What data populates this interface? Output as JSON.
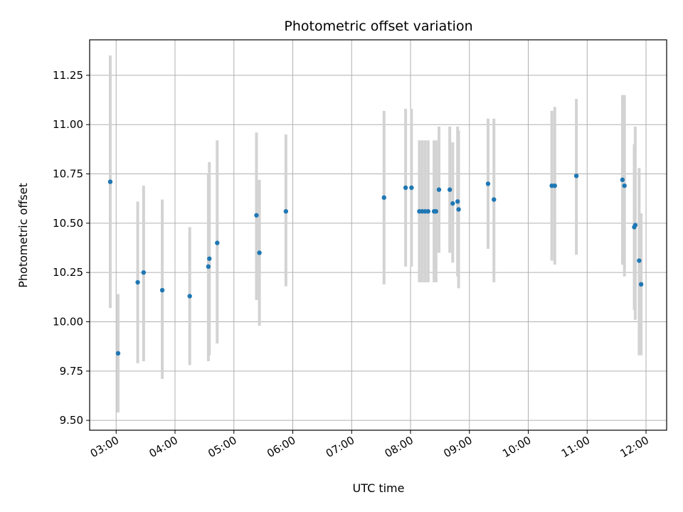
{
  "chart_data": {
    "type": "scatter",
    "title": "Photometric offset variation",
    "xlabel": "UTC time",
    "ylabel": "Photometric offset",
    "xlim": [
      "02:33",
      "12:21"
    ],
    "ylim": [
      9.45,
      11.43
    ],
    "grid": true,
    "x_ticks": [
      "03:00",
      "04:00",
      "05:00",
      "06:00",
      "07:00",
      "08:00",
      "09:00",
      "10:00",
      "11:00",
      "12:00"
    ],
    "y_ticks": [
      "9.50",
      "9.75",
      "10.00",
      "10.25",
      "10.50",
      "10.75",
      "11.00",
      "11.25"
    ],
    "series": [
      {
        "marker_color": "#1f77b4",
        "errorbar_color": "#d3d3d3",
        "points": [
          {
            "x": "02:54",
            "y": 10.71,
            "ylow": 10.07,
            "yhigh": 11.35
          },
          {
            "x": "03:02",
            "y": 9.84,
            "ylow": 9.54,
            "yhigh": 10.14
          },
          {
            "x": "03:22",
            "y": 10.2,
            "ylow": 9.79,
            "yhigh": 10.61
          },
          {
            "x": "03:28",
            "y": 10.25,
            "ylow": 9.8,
            "yhigh": 10.69
          },
          {
            "x": "03:47",
            "y": 10.16,
            "ylow": 9.71,
            "yhigh": 10.62
          },
          {
            "x": "04:15",
            "y": 10.13,
            "ylow": 9.78,
            "yhigh": 10.48
          },
          {
            "x": "04:34",
            "y": 10.28,
            "ylow": 9.8,
            "yhigh": 10.75
          },
          {
            "x": "04:35",
            "y": 10.32,
            "ylow": 9.83,
            "yhigh": 10.81
          },
          {
            "x": "04:43",
            "y": 10.4,
            "ylow": 9.89,
            "yhigh": 10.92
          },
          {
            "x": "05:23",
            "y": 10.54,
            "ylow": 10.11,
            "yhigh": 10.96
          },
          {
            "x": "05:26",
            "y": 10.35,
            "ylow": 9.98,
            "yhigh": 10.72
          },
          {
            "x": "05:53",
            "y": 10.56,
            "ylow": 10.18,
            "yhigh": 10.95
          },
          {
            "x": "07:33",
            "y": 10.63,
            "ylow": 10.19,
            "yhigh": 11.07
          },
          {
            "x": "07:55",
            "y": 10.68,
            "ylow": 10.28,
            "yhigh": 11.08
          },
          {
            "x": "08:01",
            "y": 10.68,
            "ylow": 10.28,
            "yhigh": 11.08
          },
          {
            "x": "08:09",
            "y": 10.56,
            "ylow": 10.2,
            "yhigh": 10.92
          },
          {
            "x": "08:12",
            "y": 10.56,
            "ylow": 10.2,
            "yhigh": 10.92
          },
          {
            "x": "08:15",
            "y": 10.56,
            "ylow": 10.2,
            "yhigh": 10.92
          },
          {
            "x": "08:18",
            "y": 10.56,
            "ylow": 10.2,
            "yhigh": 10.92
          },
          {
            "x": "08:24",
            "y": 10.56,
            "ylow": 10.2,
            "yhigh": 10.92
          },
          {
            "x": "08:26",
            "y": 10.56,
            "ylow": 10.2,
            "yhigh": 10.92
          },
          {
            "x": "08:29",
            "y": 10.67,
            "ylow": 10.35,
            "yhigh": 10.99
          },
          {
            "x": "08:40",
            "y": 10.67,
            "ylow": 10.35,
            "yhigh": 10.99
          },
          {
            "x": "08:43",
            "y": 10.6,
            "ylow": 10.3,
            "yhigh": 10.91
          },
          {
            "x": "08:48",
            "y": 10.61,
            "ylow": 10.23,
            "yhigh": 10.99
          },
          {
            "x": "08:49",
            "y": 10.57,
            "ylow": 10.17,
            "yhigh": 10.97
          },
          {
            "x": "09:19",
            "y": 10.7,
            "ylow": 10.37,
            "yhigh": 11.03
          },
          {
            "x": "09:25",
            "y": 10.62,
            "ylow": 10.2,
            "yhigh": 11.03
          },
          {
            "x": "10:24",
            "y": 10.69,
            "ylow": 10.31,
            "yhigh": 11.07
          },
          {
            "x": "10:27",
            "y": 10.69,
            "ylow": 10.29,
            "yhigh": 11.09
          },
          {
            "x": "10:49",
            "y": 10.74,
            "ylow": 10.34,
            "yhigh": 11.13
          },
          {
            "x": "11:36",
            "y": 10.72,
            "ylow": 10.29,
            "yhigh": 11.15
          },
          {
            "x": "11:38",
            "y": 10.69,
            "ylow": 10.23,
            "yhigh": 11.15
          },
          {
            "x": "11:48",
            "y": 10.48,
            "ylow": 10.06,
            "yhigh": 10.9
          },
          {
            "x": "11:49",
            "y": 10.49,
            "ylow": 10.01,
            "yhigh": 10.99
          },
          {
            "x": "11:53",
            "y": 10.31,
            "ylow": 9.83,
            "yhigh": 10.78
          },
          {
            "x": "11:55",
            "y": 10.19,
            "ylow": 9.83,
            "yhigh": 10.55
          }
        ]
      }
    ]
  }
}
